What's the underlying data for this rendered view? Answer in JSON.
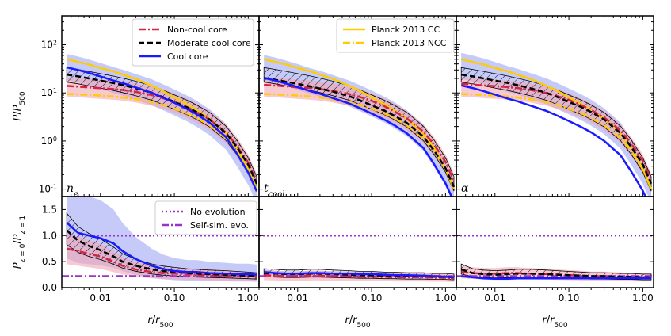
{
  "chart_data": {
    "type": "line",
    "x_scale": "log",
    "xlim": [
      0.003,
      1.4
    ],
    "xlabel": "r/r500",
    "x_ticks": [
      0.01,
      0.1,
      1.0
    ],
    "x_tick_labels": [
      "0.01",
      "0.10",
      "1.00"
    ],
    "top_row": {
      "ylabel": "P/P500",
      "y_scale": "log",
      "ylim": [
        0.07,
        400
      ],
      "y_ticks": [
        0.1,
        1,
        10,
        100
      ],
      "y_tick_labels": [
        "10^-1",
        "10^0",
        "10^1",
        "10^2"
      ]
    },
    "bottom_row": {
      "ylabel": "P z=0 / P z=1",
      "y_scale": "linear",
      "ylim": [
        0,
        1.75
      ],
      "y_ticks": [
        0.0,
        0.5,
        1.0,
        1.5
      ],
      "y_tick_labels": [
        "0.0",
        "0.5",
        "1.0",
        "1.5"
      ]
    },
    "panels": [
      {
        "label_main": "n",
        "label_sub": "e"
      },
      {
        "label_main": "t",
        "label_sub": "cool"
      },
      {
        "label_main": "α",
        "label_sub": ""
      }
    ],
    "colors": {
      "ncc": "#d62246",
      "mcc": "#000000",
      "cc": "#1a1aff",
      "planck": "#ffcc00",
      "noevo": "#9933cc",
      "selfsim": "#9933cc",
      "cc_fill": "#9ea7f5",
      "ncc_fill": "#f2a5b0"
    },
    "legend_top": [
      {
        "key": "ncc",
        "label": "Non-cool core",
        "style": "dashdot"
      },
      {
        "key": "mcc",
        "label": "Moderate cool core",
        "style": "dashed"
      },
      {
        "key": "cc",
        "label": "Cool core",
        "style": "solid"
      }
    ],
    "legend_planck": [
      {
        "key": "planck",
        "label": "Planck 2013 CC",
        "style": "solid"
      },
      {
        "key": "planck",
        "label": "Planck 2013 NCC",
        "style": "dashdot"
      }
    ],
    "legend_ratio": [
      {
        "key": "noevo",
        "label": "No evolution",
        "style": "dotted"
      },
      {
        "key": "selfsim",
        "label": "Self-sim. evo.",
        "style": "dashdot"
      }
    ],
    "reference_lines": {
      "no_evolution": 1.0,
      "self_similar": 0.22
    },
    "profiles": {
      "x": [
        0.0035,
        0.005,
        0.007,
        0.01,
        0.015,
        0.02,
        0.03,
        0.05,
        0.07,
        0.1,
        0.15,
        0.2,
        0.3,
        0.5,
        0.7,
        1.0,
        1.3
      ],
      "cc": [
        34,
        30,
        26,
        22,
        18,
        16,
        13,
        10,
        8,
        6.2,
        4.6,
        3.6,
        2.4,
        1.2,
        0.55,
        0.22,
        0.09
      ],
      "mcc": [
        24,
        22,
        20,
        18,
        16,
        14.5,
        12.5,
        10,
        8.2,
        6.5,
        5,
        4,
        2.8,
        1.45,
        0.75,
        0.32,
        0.13
      ],
      "ncc": [
        14,
        13.5,
        13,
        12.5,
        12,
        11.5,
        10.5,
        9,
        7.8,
        6.5,
        5,
        4,
        2.8,
        1.5,
        0.8,
        0.35,
        0.14
      ],
      "planck_cc": [
        50,
        44,
        39,
        33,
        28,
        24,
        19.5,
        14,
        11,
        8,
        5.8,
        4.4,
        2.9,
        1.45,
        0.72,
        0.27,
        0.1
      ],
      "planck_ncc": [
        9.5,
        9.3,
        9.1,
        8.8,
        8.4,
        8,
        7.4,
        6.4,
        5.6,
        4.7,
        3.7,
        3.0,
        2.1,
        1.15,
        0.62,
        0.26,
        0.1
      ]
    },
    "ratios": {
      "x": [
        0.0035,
        0.005,
        0.007,
        0.01,
        0.015,
        0.02,
        0.03,
        0.05,
        0.07,
        0.1,
        0.15,
        0.2,
        0.3,
        0.5,
        0.7,
        1.0,
        1.3
      ],
      "ne": {
        "cc": [
          1.25,
          1.05,
          1.0,
          0.95,
          0.85,
          0.7,
          0.55,
          0.42,
          0.36,
          0.32,
          0.3,
          0.3,
          0.28,
          0.27,
          0.26,
          0.26,
          0.25
        ],
        "mcc": [
          1.1,
          0.9,
          0.8,
          0.72,
          0.6,
          0.5,
          0.42,
          0.35,
          0.32,
          0.3,
          0.28,
          0.27,
          0.26,
          0.25,
          0.24,
          0.23,
          0.22
        ],
        "ncc": [
          0.75,
          0.7,
          0.65,
          0.6,
          0.5,
          0.42,
          0.35,
          0.3,
          0.28,
          0.27,
          0.26,
          0.25,
          0.24,
          0.23,
          0.22,
          0.22,
          0.21
        ]
      },
      "tcool": {
        "cc": [
          0.3,
          0.28,
          0.27,
          0.27,
          0.28,
          0.28,
          0.27,
          0.27,
          0.26,
          0.26,
          0.25,
          0.24,
          0.24,
          0.23,
          0.22,
          0.21,
          0.2
        ],
        "mcc": [
          0.28,
          0.27,
          0.26,
          0.26,
          0.27,
          0.27,
          0.26,
          0.25,
          0.24,
          0.24,
          0.23,
          0.23,
          0.22,
          0.22,
          0.21,
          0.21,
          0.2
        ],
        "ncc": [
          0.24,
          0.23,
          0.22,
          0.22,
          0.23,
          0.23,
          0.22,
          0.22,
          0.21,
          0.21,
          0.21,
          0.2,
          0.2,
          0.2,
          0.19,
          0.19,
          0.18
        ]
      },
      "alpha": {
        "cc": [
          0.22,
          0.2,
          0.18,
          0.17,
          0.17,
          0.18,
          0.18,
          0.18,
          0.18,
          0.18,
          0.18,
          0.18,
          0.18,
          0.18,
          0.18,
          0.18,
          0.18
        ],
        "mcc": [
          0.35,
          0.28,
          0.26,
          0.25,
          0.26,
          0.27,
          0.27,
          0.26,
          0.25,
          0.24,
          0.23,
          0.22,
          0.22,
          0.21,
          0.21,
          0.2,
          0.2
        ],
        "ncc": [
          0.3,
          0.28,
          0.27,
          0.27,
          0.28,
          0.28,
          0.27,
          0.26,
          0.25,
          0.24,
          0.23,
          0.22,
          0.22,
          0.21,
          0.2,
          0.2,
          0.2
        ]
      }
    }
  }
}
